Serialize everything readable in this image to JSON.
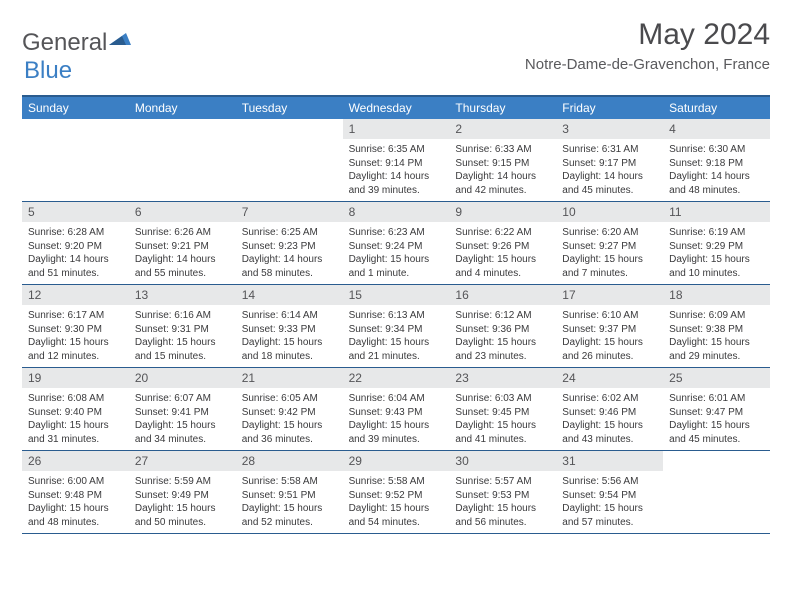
{
  "logo": {
    "text1": "General",
    "text2": "Blue"
  },
  "title": "May 2024",
  "location": "Notre-Dame-de-Gravenchon, France",
  "colors": {
    "header_bg": "#3b7fc4",
    "header_border": "#2a5c8f",
    "daynum_bg": "#e7e8e9",
    "text_dark": "#3a3a3c",
    "text_mid": "#555558"
  },
  "day_headers": [
    "Sunday",
    "Monday",
    "Tuesday",
    "Wednesday",
    "Thursday",
    "Friday",
    "Saturday"
  ],
  "weeks": [
    [
      null,
      null,
      null,
      {
        "n": "1",
        "sr": "6:35 AM",
        "ss": "9:14 PM",
        "dl": "14 hours and 39 minutes."
      },
      {
        "n": "2",
        "sr": "6:33 AM",
        "ss": "9:15 PM",
        "dl": "14 hours and 42 minutes."
      },
      {
        "n": "3",
        "sr": "6:31 AM",
        "ss": "9:17 PM",
        "dl": "14 hours and 45 minutes."
      },
      {
        "n": "4",
        "sr": "6:30 AM",
        "ss": "9:18 PM",
        "dl": "14 hours and 48 minutes."
      }
    ],
    [
      {
        "n": "5",
        "sr": "6:28 AM",
        "ss": "9:20 PM",
        "dl": "14 hours and 51 minutes."
      },
      {
        "n": "6",
        "sr": "6:26 AM",
        "ss": "9:21 PM",
        "dl": "14 hours and 55 minutes."
      },
      {
        "n": "7",
        "sr": "6:25 AM",
        "ss": "9:23 PM",
        "dl": "14 hours and 58 minutes."
      },
      {
        "n": "8",
        "sr": "6:23 AM",
        "ss": "9:24 PM",
        "dl": "15 hours and 1 minute."
      },
      {
        "n": "9",
        "sr": "6:22 AM",
        "ss": "9:26 PM",
        "dl": "15 hours and 4 minutes."
      },
      {
        "n": "10",
        "sr": "6:20 AM",
        "ss": "9:27 PM",
        "dl": "15 hours and 7 minutes."
      },
      {
        "n": "11",
        "sr": "6:19 AM",
        "ss": "9:29 PM",
        "dl": "15 hours and 10 minutes."
      }
    ],
    [
      {
        "n": "12",
        "sr": "6:17 AM",
        "ss": "9:30 PM",
        "dl": "15 hours and 12 minutes."
      },
      {
        "n": "13",
        "sr": "6:16 AM",
        "ss": "9:31 PM",
        "dl": "15 hours and 15 minutes."
      },
      {
        "n": "14",
        "sr": "6:14 AM",
        "ss": "9:33 PM",
        "dl": "15 hours and 18 minutes."
      },
      {
        "n": "15",
        "sr": "6:13 AM",
        "ss": "9:34 PM",
        "dl": "15 hours and 21 minutes."
      },
      {
        "n": "16",
        "sr": "6:12 AM",
        "ss": "9:36 PM",
        "dl": "15 hours and 23 minutes."
      },
      {
        "n": "17",
        "sr": "6:10 AM",
        "ss": "9:37 PM",
        "dl": "15 hours and 26 minutes."
      },
      {
        "n": "18",
        "sr": "6:09 AM",
        "ss": "9:38 PM",
        "dl": "15 hours and 29 minutes."
      }
    ],
    [
      {
        "n": "19",
        "sr": "6:08 AM",
        "ss": "9:40 PM",
        "dl": "15 hours and 31 minutes."
      },
      {
        "n": "20",
        "sr": "6:07 AM",
        "ss": "9:41 PM",
        "dl": "15 hours and 34 minutes."
      },
      {
        "n": "21",
        "sr": "6:05 AM",
        "ss": "9:42 PM",
        "dl": "15 hours and 36 minutes."
      },
      {
        "n": "22",
        "sr": "6:04 AM",
        "ss": "9:43 PM",
        "dl": "15 hours and 39 minutes."
      },
      {
        "n": "23",
        "sr": "6:03 AM",
        "ss": "9:45 PM",
        "dl": "15 hours and 41 minutes."
      },
      {
        "n": "24",
        "sr": "6:02 AM",
        "ss": "9:46 PM",
        "dl": "15 hours and 43 minutes."
      },
      {
        "n": "25",
        "sr": "6:01 AM",
        "ss": "9:47 PM",
        "dl": "15 hours and 45 minutes."
      }
    ],
    [
      {
        "n": "26",
        "sr": "6:00 AM",
        "ss": "9:48 PM",
        "dl": "15 hours and 48 minutes."
      },
      {
        "n": "27",
        "sr": "5:59 AM",
        "ss": "9:49 PM",
        "dl": "15 hours and 50 minutes."
      },
      {
        "n": "28",
        "sr": "5:58 AM",
        "ss": "9:51 PM",
        "dl": "15 hours and 52 minutes."
      },
      {
        "n": "29",
        "sr": "5:58 AM",
        "ss": "9:52 PM",
        "dl": "15 hours and 54 minutes."
      },
      {
        "n": "30",
        "sr": "5:57 AM",
        "ss": "9:53 PM",
        "dl": "15 hours and 56 minutes."
      },
      {
        "n": "31",
        "sr": "5:56 AM",
        "ss": "9:54 PM",
        "dl": "15 hours and 57 minutes."
      },
      null
    ]
  ],
  "labels": {
    "sunrise": "Sunrise:",
    "sunset": "Sunset:",
    "daylight": "Daylight:"
  }
}
